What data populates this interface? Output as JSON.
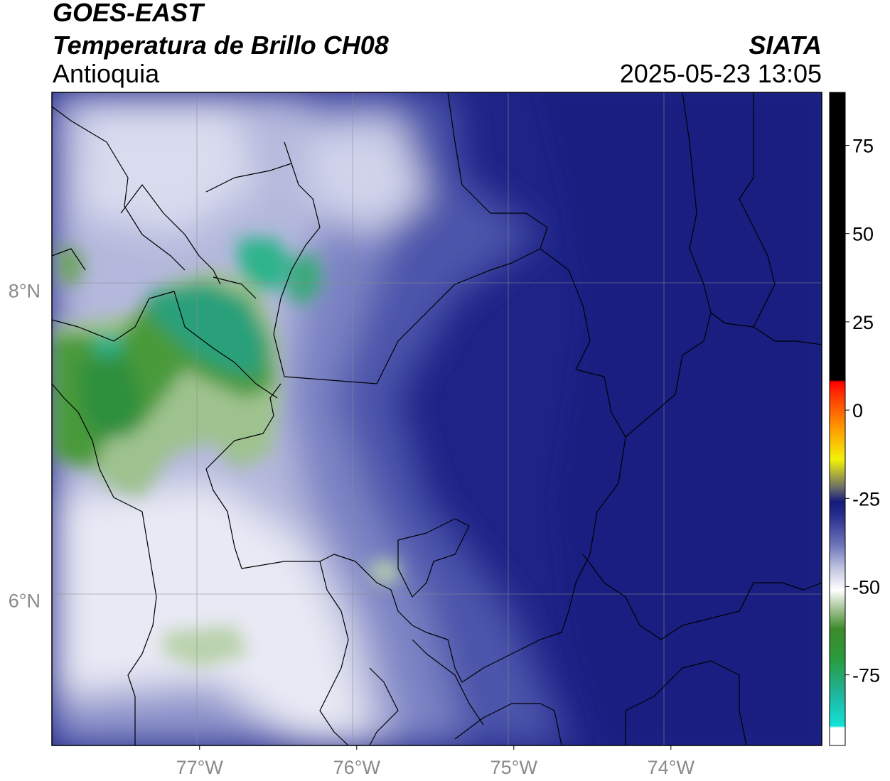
{
  "header": {
    "satellite": "GOES-EAST",
    "product": "Temperatura de Brillo CH08",
    "region": "Antioquia",
    "agency": "SIATA",
    "datetime": "2025-05-23 13:05"
  },
  "map": {
    "lon_range": [
      -77.94,
      -73.04
    ],
    "lat_range": [
      5.06,
      9.28
    ],
    "lon_ticks": [
      {
        "value": -77,
        "label": "77°W"
      },
      {
        "value": -76,
        "label": "76°W"
      },
      {
        "value": -75,
        "label": "75°W"
      },
      {
        "value": -74,
        "label": "74°W"
      }
    ],
    "lat_ticks": [
      {
        "value": 8,
        "label": "8°N"
      },
      {
        "value": 6,
        "label": "6°N"
      }
    ],
    "gridlines": true
  },
  "colorbar": {
    "range": [
      -95,
      90
    ],
    "ticks": [
      {
        "value": 75,
        "label": "75"
      },
      {
        "value": 50,
        "label": "50"
      },
      {
        "value": 25,
        "label": "25"
      },
      {
        "value": 0,
        "label": "0"
      },
      {
        "value": -25,
        "label": "-25"
      },
      {
        "value": -50,
        "label": "-50"
      },
      {
        "value": -75,
        "label": "-75"
      }
    ],
    "stops": [
      {
        "value": -95,
        "color": "#ffffff"
      },
      {
        "value": -90,
        "color": "#ffffff"
      },
      {
        "value": -89.5,
        "color": "#12e3d6"
      },
      {
        "value": -80,
        "color": "#1fb39a"
      },
      {
        "value": -70,
        "color": "#2a9a3a"
      },
      {
        "value": -62,
        "color": "#3d8a2a"
      },
      {
        "value": -56,
        "color": "#a9c79a"
      },
      {
        "value": -51,
        "color": "#ffffff"
      },
      {
        "value": -45,
        "color": "#c3c6e1"
      },
      {
        "value": -38,
        "color": "#6a72b8"
      },
      {
        "value": -30,
        "color": "#2a2f8f"
      },
      {
        "value": -26,
        "color": "#141a7a"
      },
      {
        "value": -22,
        "color": "#6b6b6b"
      },
      {
        "value": -14,
        "color": "#f2f20a"
      },
      {
        "value": -5,
        "color": "#ff9900"
      },
      {
        "value": 5,
        "color": "#ff2a00"
      },
      {
        "value": 8,
        "color": "#ff0000"
      },
      {
        "value": 8.5,
        "color": "#000000"
      },
      {
        "value": 90,
        "color": "#000000"
      }
    ]
  },
  "palette": {
    "deep_cloud": "#1c2185",
    "mid_cloud": "#4a52a8",
    "light_cloud": "#c2c5e2",
    "clear": "#ffffff",
    "moist_green": "#3d8e2e",
    "teal": "#2fb48c"
  }
}
